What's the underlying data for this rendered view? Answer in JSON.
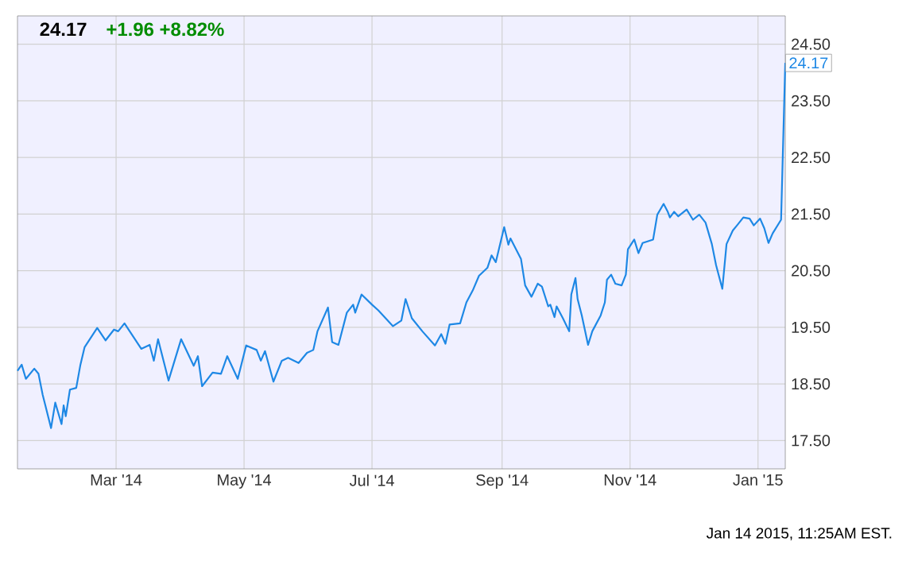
{
  "chart_data": {
    "type": "line",
    "title": "24.17",
    "subtitle": "+1.96 +8.82%",
    "annotations": [
      {
        "text": "24.17",
        "x": "2015-01-14",
        "y": 24.17
      },
      "Jan 14 2015, 11:25AM EST."
    ],
    "xlim": [
      "2014-01-13",
      "2015-01-14"
    ],
    "xticks": [
      {
        "value": "2014-03-01",
        "label": "Mar '14"
      },
      {
        "value": "2014-05-01",
        "label": "May '14"
      },
      {
        "value": "2014-07-01",
        "label": "Jul '14"
      },
      {
        "value": "2014-09-01",
        "label": "Sep '14"
      },
      {
        "value": "2014-11-01",
        "label": "Nov '14"
      },
      {
        "value": "2015-01-01",
        "label": "Jan '15"
      }
    ],
    "ylim": [
      17,
      25
    ],
    "yticks": [
      {
        "value": 17.5,
        "label": "17.50"
      },
      {
        "value": 18.5,
        "label": "18.50"
      },
      {
        "value": 19.5,
        "label": "19.50"
      },
      {
        "value": 20.5,
        "label": "20.50"
      },
      {
        "value": 21.5,
        "label": "21.50"
      },
      {
        "value": 22.5,
        "label": "22.50"
      },
      {
        "value": 23.5,
        "label": "23.50"
      },
      {
        "value": 24.5,
        "label": "24.50"
      }
    ],
    "grid": true,
    "marker": "none",
    "line_style": "solid",
    "series": [
      {
        "color": "#1e88e5",
        "x": [
          "2014-01-13",
          "2014-01-15",
          "2014-01-17",
          "2014-01-21",
          "2014-01-23",
          "2014-01-25",
          "2014-01-29",
          "2014-01-31",
          "2014-02-03",
          "2014-02-04",
          "2014-02-05",
          "2014-02-07",
          "2014-02-10",
          "2014-02-12",
          "2014-02-14",
          "2014-02-20",
          "2014-02-24",
          "2014-02-28",
          "2014-03-02",
          "2014-03-05",
          "2014-03-10",
          "2014-03-13",
          "2014-03-17",
          "2014-03-19",
          "2014-03-21",
          "2014-03-26",
          "2014-04-01",
          "2014-04-07",
          "2014-04-09",
          "2014-04-11",
          "2014-04-16",
          "2014-04-20",
          "2014-04-23",
          "2014-04-28",
          "2014-05-02",
          "2014-05-07",
          "2014-05-09",
          "2014-05-11",
          "2014-05-15",
          "2014-05-19",
          "2014-05-22",
          "2014-05-27",
          "2014-05-31",
          "2014-06-03",
          "2014-06-05",
          "2014-06-10",
          "2014-06-12",
          "2014-06-15",
          "2014-06-19",
          "2014-06-22",
          "2014-06-23",
          "2014-06-26",
          "2014-07-01",
          "2014-07-04",
          "2014-07-11",
          "2014-07-15",
          "2014-07-17",
          "2014-07-20",
          "2014-07-25",
          "2014-07-31",
          "2014-08-03",
          "2014-08-05",
          "2014-08-07",
          "2014-08-12",
          "2014-08-15",
          "2014-08-18",
          "2014-08-21",
          "2014-08-25",
          "2014-08-27",
          "2014-08-29",
          "2014-09-02",
          "2014-09-04",
          "2014-09-05",
          "2014-09-10",
          "2014-09-12",
          "2014-09-15",
          "2014-09-18",
          "2014-09-20",
          "2014-09-23",
          "2014-09-24",
          "2014-09-26",
          "2014-09-27",
          "2014-09-30",
          "2014-10-03",
          "2014-10-04",
          "2014-10-06",
          "2014-10-07",
          "2014-10-09",
          "2014-10-12",
          "2014-10-14",
          "2014-10-18",
          "2014-10-20",
          "2014-10-21",
          "2014-10-23",
          "2014-10-25",
          "2014-10-28",
          "2014-10-30",
          "2014-10-31",
          "2014-11-03",
          "2014-11-05",
          "2014-11-07",
          "2014-11-12",
          "2014-11-14",
          "2014-11-17",
          "2014-11-19",
          "2014-11-20",
          "2014-11-22",
          "2014-11-24",
          "2014-11-28",
          "2014-12-01",
          "2014-12-04",
          "2014-12-07",
          "2014-12-10",
          "2014-12-12",
          "2014-12-15",
          "2014-12-17",
          "2014-12-20",
          "2014-12-22",
          "2014-12-25",
          "2014-12-28",
          "2014-12-30",
          "2015-01-02",
          "2015-01-04",
          "2015-01-06",
          "2015-01-08",
          "2015-01-12",
          "2015-01-14"
        ],
        "values": [
          18.73,
          18.84,
          18.59,
          18.77,
          18.68,
          18.31,
          17.72,
          18.17,
          17.79,
          18.12,
          17.93,
          18.4,
          18.43,
          18.84,
          19.15,
          19.49,
          19.27,
          19.46,
          19.43,
          19.57,
          19.29,
          19.12,
          19.19,
          18.91,
          19.29,
          18.56,
          19.29,
          18.82,
          18.99,
          18.46,
          18.7,
          18.68,
          18.99,
          18.59,
          19.18,
          19.1,
          18.91,
          19.08,
          18.54,
          18.91,
          18.96,
          18.87,
          19.05,
          19.1,
          19.43,
          19.85,
          19.24,
          19.19,
          19.76,
          19.9,
          19.76,
          20.08,
          19.9,
          19.8,
          19.52,
          19.62,
          20.0,
          19.66,
          19.43,
          19.18,
          19.38,
          19.21,
          19.55,
          19.57,
          19.94,
          20.15,
          20.41,
          20.55,
          20.77,
          20.65,
          21.27,
          20.96,
          21.07,
          20.71,
          20.24,
          20.04,
          20.27,
          20.22,
          19.87,
          19.9,
          19.68,
          19.87,
          19.66,
          19.43,
          20.08,
          20.37,
          20.0,
          19.71,
          19.19,
          19.43,
          19.71,
          19.94,
          20.34,
          20.43,
          20.27,
          20.24,
          20.43,
          20.88,
          21.05,
          20.81,
          20.99,
          21.05,
          21.49,
          21.68,
          21.54,
          21.44,
          21.54,
          21.46,
          21.58,
          21.4,
          21.49,
          21.35,
          20.97,
          20.6,
          20.18,
          20.97,
          21.21,
          21.3,
          21.44,
          21.42,
          21.3,
          21.42,
          21.25,
          20.99,
          21.16,
          21.4,
          24.17
        ]
      }
    ]
  }
}
